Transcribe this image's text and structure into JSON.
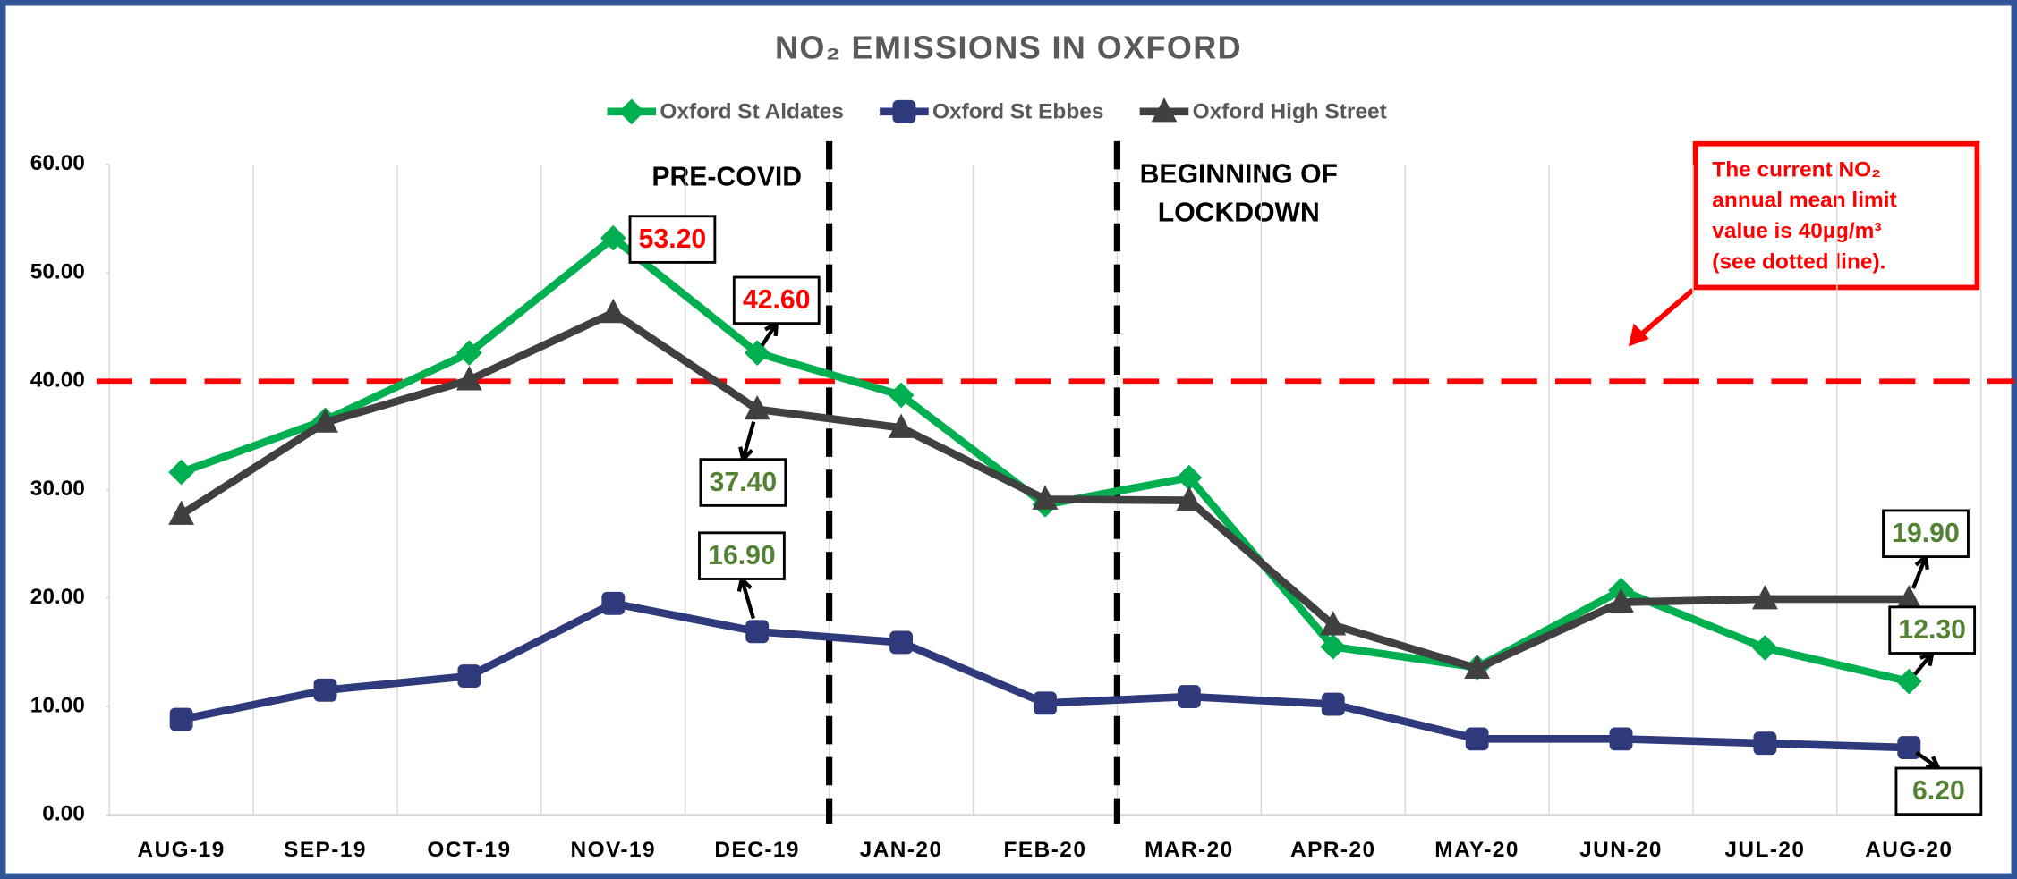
{
  "chart_data": {
    "type": "line",
    "title": "NO₂ EMISSIONS IN OXFORD",
    "categories": [
      "AUG-19",
      "SEP-19",
      "OCT-19",
      "NOV-19",
      "DEC-19",
      "JAN-20",
      "FEB-20",
      "MAR-20",
      "APR-20",
      "MAY-20",
      "JUN-20",
      "JUL-20",
      "AUG-20"
    ],
    "series": [
      {
        "name": "Oxford St Aldates",
        "color": "#00b050",
        "marker": "diamond",
        "values": [
          31.6,
          36.4,
          42.6,
          53.2,
          42.6,
          38.7,
          28.6,
          31.1,
          15.5,
          13.6,
          20.7,
          15.4,
          12.3
        ],
        "value_labels": [
          null,
          null,
          null,
          "53.20",
          "42.60",
          null,
          null,
          null,
          null,
          null,
          null,
          null,
          "12.30"
        ],
        "value_label_colors": [
          null,
          null,
          null,
          "#ff0000",
          "#ff0000",
          null,
          null,
          null,
          null,
          null,
          null,
          null,
          "#548235"
        ]
      },
      {
        "name": "Oxford St Ebbes",
        "color": "#2f3a7c",
        "marker": "square",
        "values": [
          8.8,
          11.5,
          12.8,
          19.5,
          16.9,
          15.9,
          10.3,
          10.9,
          10.2,
          7.0,
          7.0,
          6.6,
          6.2
        ],
        "value_labels": [
          null,
          null,
          null,
          null,
          "16.90",
          null,
          null,
          null,
          null,
          null,
          null,
          null,
          "6.20"
        ],
        "value_label_colors": [
          null,
          null,
          null,
          null,
          "#548235",
          null,
          null,
          null,
          null,
          null,
          null,
          null,
          "#548235"
        ]
      },
      {
        "name": "Oxford High Street",
        "color": "#404040",
        "marker": "triangle",
        "values": [
          27.7,
          36.2,
          40.1,
          46.3,
          37.4,
          35.7,
          29.1,
          29.0,
          17.5,
          13.5,
          19.6,
          19.9,
          19.9
        ],
        "value_labels": [
          null,
          null,
          null,
          null,
          "37.40",
          null,
          null,
          null,
          null,
          null,
          null,
          null,
          "19.90"
        ],
        "value_label_colors": [
          null,
          null,
          null,
          null,
          "#548235",
          null,
          null,
          null,
          null,
          null,
          null,
          null,
          "#548235"
        ]
      }
    ],
    "ylim": [
      0,
      60
    ],
    "yticks": [
      {
        "value": 0,
        "label": "0.00"
      },
      {
        "value": 10,
        "label": "10.00"
      },
      {
        "value": 20,
        "label": "20.00"
      },
      {
        "value": 30,
        "label": "30.00"
      },
      {
        "value": 40,
        "label": "40.00"
      },
      {
        "value": 50,
        "label": "50.00"
      },
      {
        "value": 60,
        "label": "60.00"
      }
    ],
    "reference_line": {
      "value": 40,
      "color": "#ff0000"
    },
    "annotations": {
      "pre_covid": "PRE-COVID",
      "lockdown": [
        "BEGINNING OF",
        "LOCKDOWN"
      ],
      "limit_note": [
        "The current NO₂",
        "annual mean limit",
        "value is 40µg/m³",
        "(see dotted line)."
      ]
    },
    "legend": "top",
    "grid": true
  }
}
